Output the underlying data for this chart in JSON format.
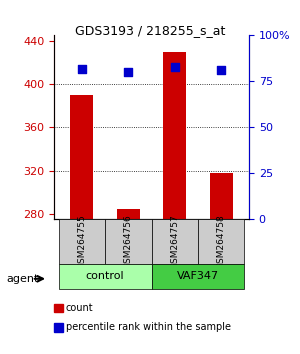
{
  "title": "GDS3193 / 218255_s_at",
  "samples": [
    "GSM264755",
    "GSM264756",
    "GSM264757",
    "GSM264758"
  ],
  "counts": [
    390,
    285,
    430,
    318
  ],
  "percentile_ranks": [
    82,
    80,
    83,
    81
  ],
  "ylim_left": [
    275,
    445
  ],
  "ylim_right": [
    0,
    100
  ],
  "yticks_left": [
    280,
    320,
    360,
    400,
    440
  ],
  "yticks_right": [
    0,
    25,
    50,
    75,
    100
  ],
  "bar_color": "#cc0000",
  "marker_color": "#0000cc",
  "bar_bottom": 275,
  "groups": [
    {
      "label": "control",
      "indices": [
        0,
        1
      ],
      "color": "#aaffaa"
    },
    {
      "label": "VAF347",
      "indices": [
        2,
        3
      ],
      "color": "#44cc44"
    }
  ],
  "agent_label": "agent",
  "legend_items": [
    {
      "label": "count",
      "color": "#cc0000"
    },
    {
      "label": "percentile rank within the sample",
      "color": "#0000cc"
    }
  ],
  "grid_yticks": [
    320,
    360,
    400
  ],
  "left_axis_color": "#cc0000",
  "right_axis_color": "#0000cc",
  "background_color": "#ffffff",
  "plot_bg_color": "#ffffff"
}
